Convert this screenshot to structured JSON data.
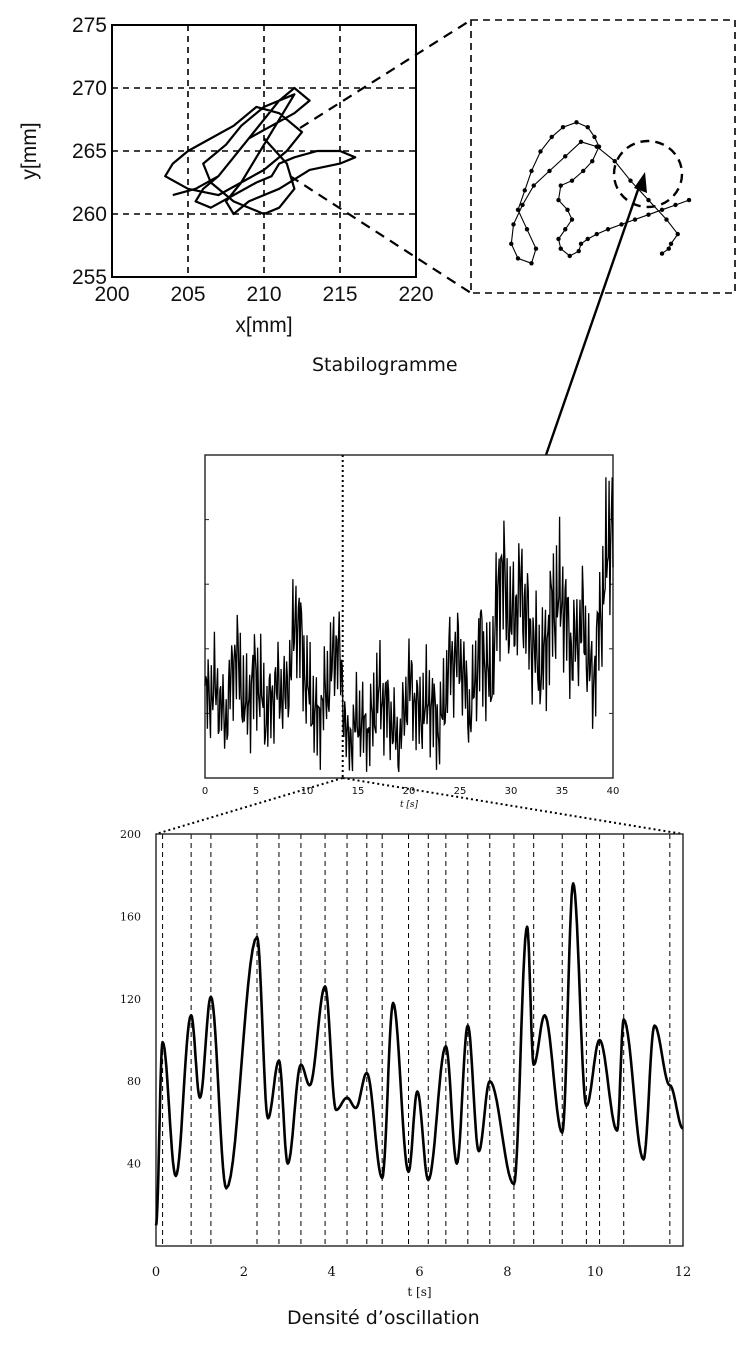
{
  "captions": {
    "top": "Stabilogramme",
    "bottom": "Densité d’oscillation"
  },
  "chart_data": [
    {
      "type": "line",
      "name": "stabilogram",
      "xlabel": "x[mm]",
      "ylabel": "y[mm]",
      "xlim": [
        200,
        220
      ],
      "ylim": [
        255,
        275
      ],
      "xticks": [
        200,
        205,
        210,
        215,
        220
      ],
      "yticks": [
        255,
        260,
        265,
        270,
        275
      ],
      "grid": true,
      "x": [
        204.0,
        205.5,
        207.0,
        208.0,
        209.0,
        210.0,
        211.0,
        212.0,
        213.0,
        212.0,
        210.5,
        209.0,
        208.0,
        207.0,
        206.0,
        205.5,
        206.5,
        208.0,
        209.5,
        210.5,
        211.0,
        212.0,
        213.5,
        215.0,
        216.0,
        215.0,
        213.0,
        211.0,
        209.0,
        208.0,
        207.5,
        208.5,
        210.0,
        211.5,
        212.5,
        211.0,
        209.5,
        208.0,
        206.5,
        205.0,
        204.0,
        203.5,
        205.0,
        207.0,
        208.5,
        209.5,
        210.5,
        211.5,
        212.0,
        210.0,
        208.5,
        207.5,
        206.0,
        206.5,
        208.0,
        210.0,
        211.0,
        212.0,
        211.5,
        210.0
      ],
      "y": [
        261.5,
        262.0,
        263.0,
        264.5,
        266.0,
        267.5,
        269.0,
        270.0,
        269.0,
        268.0,
        267.0,
        266.0,
        264.5,
        263.0,
        262.0,
        261.0,
        260.5,
        261.5,
        262.5,
        263.0,
        264.0,
        264.5,
        265.0,
        265.0,
        264.5,
        264.0,
        263.5,
        262.0,
        261.0,
        260.0,
        261.0,
        262.5,
        263.5,
        265.0,
        266.5,
        268.0,
        268.5,
        267.0,
        266.0,
        265.0,
        264.0,
        263.0,
        262.0,
        261.5,
        262.5,
        264.5,
        266.5,
        268.5,
        269.5,
        268.5,
        267.0,
        265.5,
        264.0,
        262.5,
        261.0,
        260.0,
        260.5,
        262.0,
        264.0,
        266.0
      ]
    },
    {
      "type": "line",
      "name": "stabilogram-zoom",
      "x": [
        0.76,
        0.79,
        0.8,
        0.83,
        0.78,
        0.7,
        0.62,
        0.55,
        0.47,
        0.4,
        0.33,
        0.26,
        0.19,
        0.14,
        0.1,
        0.09,
        0.12,
        0.18,
        0.2,
        0.16,
        0.12,
        0.15,
        0.18,
        0.22,
        0.27,
        0.32,
        0.38,
        0.43,
        0.46,
        0.48,
        0.45,
        0.41,
        0.36,
        0.31,
        0.3,
        0.34,
        0.36,
        0.33,
        0.3,
        0.31,
        0.35,
        0.39,
        0.4,
        0.43,
        0.47,
        0.52,
        0.58,
        0.64,
        0.7,
        0.76,
        0.82,
        0.88
      ],
      "y": [
        0.08,
        0.1,
        0.12,
        0.16,
        0.22,
        0.3,
        0.38,
        0.46,
        0.52,
        0.54,
        0.48,
        0.42,
        0.36,
        0.28,
        0.2,
        0.12,
        0.06,
        0.04,
        0.1,
        0.18,
        0.26,
        0.34,
        0.42,
        0.5,
        0.56,
        0.6,
        0.62,
        0.6,
        0.56,
        0.52,
        0.46,
        0.42,
        0.38,
        0.36,
        0.3,
        0.26,
        0.22,
        0.18,
        0.14,
        0.1,
        0.07,
        0.09,
        0.12,
        0.14,
        0.16,
        0.18,
        0.2,
        0.22,
        0.24,
        0.26,
        0.28,
        0.3
      ]
    },
    {
      "type": "line",
      "name": "time-series",
      "xlabel": "t [s]",
      "xlim": [
        0,
        40
      ],
      "xticks": [
        0,
        5,
        10,
        15,
        20,
        25,
        30,
        35,
        40
      ],
      "marker_t": 13.5,
      "t": [
        0,
        1,
        2,
        3,
        4,
        5,
        6,
        7,
        8,
        9,
        10,
        11,
        12,
        13,
        14,
        15,
        16,
        17,
        18,
        19,
        20,
        21,
        22,
        23,
        24,
        25,
        26,
        27,
        28,
        29,
        30,
        31,
        32,
        33,
        34,
        35,
        36,
        37,
        38,
        39,
        40
      ],
      "values": [
        0.25,
        0.3,
        0.18,
        0.42,
        0.22,
        0.35,
        0.2,
        0.3,
        0.27,
        0.55,
        0.3,
        0.18,
        0.3,
        0.45,
        0.1,
        0.2,
        0.14,
        0.28,
        0.22,
        0.1,
        0.32,
        0.2,
        0.26,
        0.15,
        0.38,
        0.4,
        0.2,
        0.45,
        0.3,
        0.7,
        0.5,
        0.62,
        0.45,
        0.35,
        0.55,
        0.6,
        0.4,
        0.52,
        0.3,
        0.6,
        0.9
      ]
    },
    {
      "type": "line",
      "name": "oscillation-density",
      "xlabel": "t [s]",
      "xlim": [
        0,
        12
      ],
      "ylim": [
        0,
        200
      ],
      "xticks": [
        0,
        2,
        4,
        6,
        8,
        10,
        12
      ],
      "yticks": [
        40,
        80,
        120,
        160,
        200
      ],
      "x": [
        0,
        0.15,
        0.45,
        0.8,
        1.0,
        1.25,
        1.6,
        2.3,
        2.55,
        2.8,
        3.0,
        3.3,
        3.5,
        3.85,
        4.1,
        4.35,
        4.55,
        4.8,
        5.15,
        5.4,
        5.75,
        5.95,
        6.2,
        6.6,
        6.85,
        7.1,
        7.35,
        7.6,
        8.15,
        8.45,
        8.6,
        8.85,
        9.25,
        9.5,
        9.8,
        10.1,
        10.5,
        10.65,
        11.1,
        11.35,
        11.7,
        12.0
      ],
      "y": [
        10,
        99,
        34,
        112,
        72,
        121,
        28,
        150,
        62,
        90,
        40,
        88,
        78,
        126,
        66,
        72,
        67,
        84,
        33,
        118,
        36,
        75,
        32,
        97,
        40,
        107,
        46,
        80,
        30,
        155,
        88,
        112,
        55,
        176,
        68,
        100,
        56,
        110,
        42,
        107,
        78,
        57
      ],
      "peak_lines": [
        0.15,
        0.8,
        1.25,
        2.3,
        2.8,
        3.3,
        3.85,
        4.35,
        4.8,
        5.15,
        5.75,
        6.2,
        6.6,
        7.1,
        7.6,
        8.15,
        8.6,
        9.25,
        9.8,
        10.1,
        10.65,
        11.7
      ]
    }
  ]
}
